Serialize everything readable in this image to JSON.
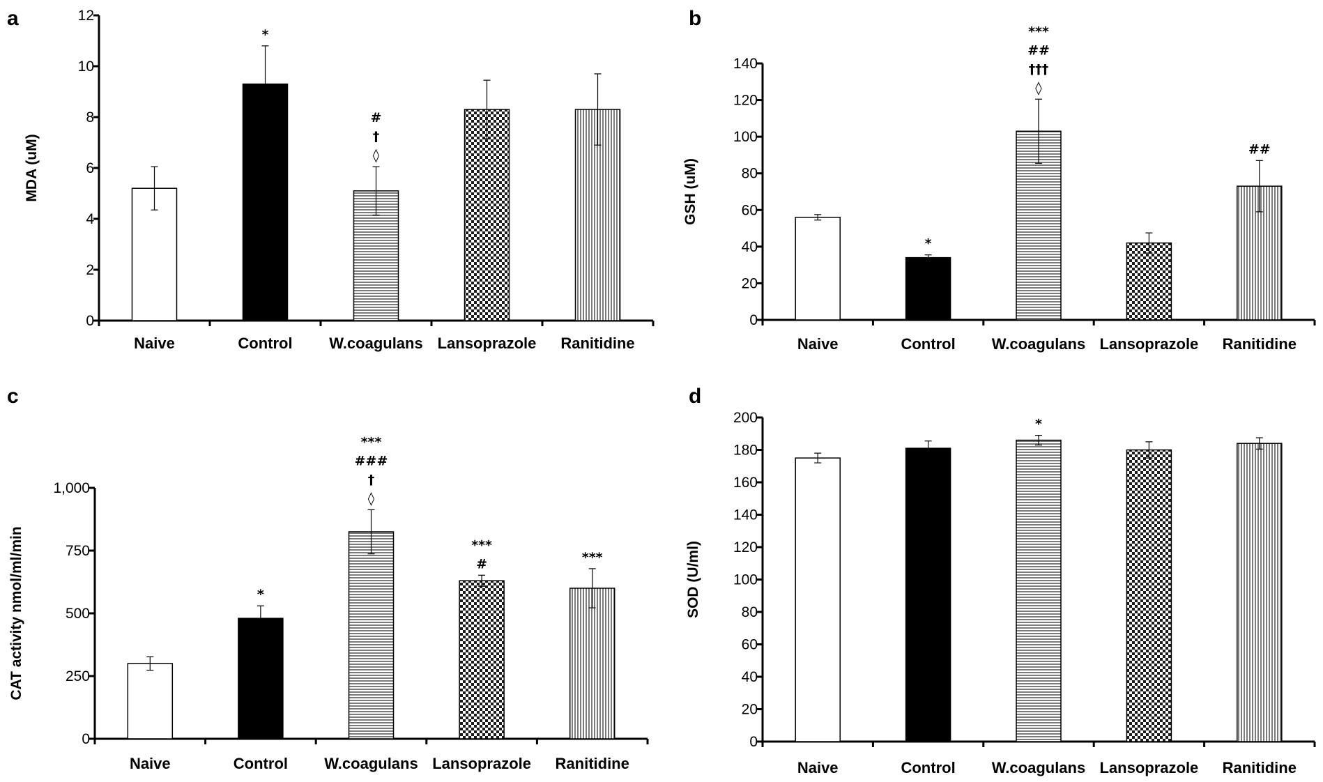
{
  "chart_data": [
    {
      "panel": "a",
      "type": "bar",
      "title": "",
      "xlabel": "",
      "ylabel": "MDA (uM)",
      "ylim": [
        0,
        12
      ],
      "yticks": [
        0,
        2,
        4,
        6,
        8,
        10,
        12
      ],
      "tick_labels": [
        "0",
        "2",
        "4",
        "6",
        "8",
        "10",
        "12"
      ],
      "categories": [
        "Naive",
        "Control",
        "W.coagulans",
        "Lansoprazole",
        "Ranitidine"
      ],
      "values": [
        5.2,
        9.3,
        5.1,
        8.3,
        8.3
      ],
      "errors": [
        0.85,
        1.5,
        0.95,
        1.15,
        1.4
      ],
      "fills": [
        "white",
        "black",
        "hstripe",
        "checker",
        "vstripe"
      ],
      "annotations": [
        [],
        [
          "*"
        ],
        [
          "#",
          "†",
          "◊"
        ],
        [],
        []
      ]
    },
    {
      "panel": "b",
      "type": "bar",
      "title": "",
      "xlabel": "",
      "ylabel": "GSH (uM)",
      "ylim": [
        0,
        140
      ],
      "yticks": [
        0,
        20,
        40,
        60,
        80,
        100,
        120,
        140
      ],
      "tick_labels": [
        "0",
        "20",
        "40",
        "60",
        "80",
        "100",
        "120",
        "140"
      ],
      "categories": [
        "Naive",
        "Control",
        "W.coagulans",
        "Lansoprazole",
        "Ranitidine"
      ],
      "values": [
        56,
        34,
        103,
        42,
        73
      ],
      "errors": [
        1.5,
        1.5,
        17.5,
        5.5,
        14
      ],
      "fills": [
        "white",
        "black",
        "hstripe",
        "checker",
        "vstripe"
      ],
      "annotations": [
        [],
        [
          "*"
        ],
        [
          "***",
          "##",
          "†††",
          "◊"
        ],
        [],
        [
          "##"
        ]
      ]
    },
    {
      "panel": "c",
      "type": "bar",
      "title": "",
      "xlabel": "",
      "ylabel": "CAT activity nmol/ml/min",
      "ylim": [
        0,
        1000
      ],
      "yticks": [
        0,
        250,
        500,
        750,
        1000
      ],
      "tick_labels": [
        "0",
        "250",
        "500",
        "750",
        "1,000"
      ],
      "categories": [
        "Naive",
        "Control",
        "W.coagulans",
        "Lansoprazole",
        "Ranitidine"
      ],
      "values": [
        300,
        480,
        825,
        630,
        600
      ],
      "errors": [
        27,
        50,
        88,
        22,
        78
      ],
      "fills": [
        "white",
        "black",
        "hstripe",
        "checker",
        "vstripe"
      ],
      "annotations": [
        [],
        [
          "*"
        ],
        [
          "***",
          "###",
          "†",
          "◊"
        ],
        [
          "***",
          "#"
        ],
        [
          "***"
        ]
      ]
    },
    {
      "panel": "d",
      "type": "bar",
      "title": "",
      "xlabel": "",
      "ylabel": "SOD (U/ml)",
      "ylim": [
        0,
        200
      ],
      "yticks": [
        0,
        20,
        40,
        60,
        80,
        100,
        120,
        140,
        160,
        180,
        200
      ],
      "tick_labels": [
        "0",
        "20",
        "40",
        "60",
        "80",
        "100",
        "120",
        "140",
        "160",
        "180",
        "200"
      ],
      "categories": [
        "Naive",
        "Control",
        "W.coagulans",
        "Lansoprazole",
        "Ranitidine"
      ],
      "values": [
        175,
        181,
        186,
        180,
        184
      ],
      "errors": [
        3,
        4.5,
        3,
        5,
        3.5
      ],
      "fills": [
        "white",
        "black",
        "hstripe",
        "checker",
        "vstripe"
      ],
      "annotations": [
        [],
        [],
        [
          "*"
        ],
        [],
        []
      ]
    }
  ]
}
